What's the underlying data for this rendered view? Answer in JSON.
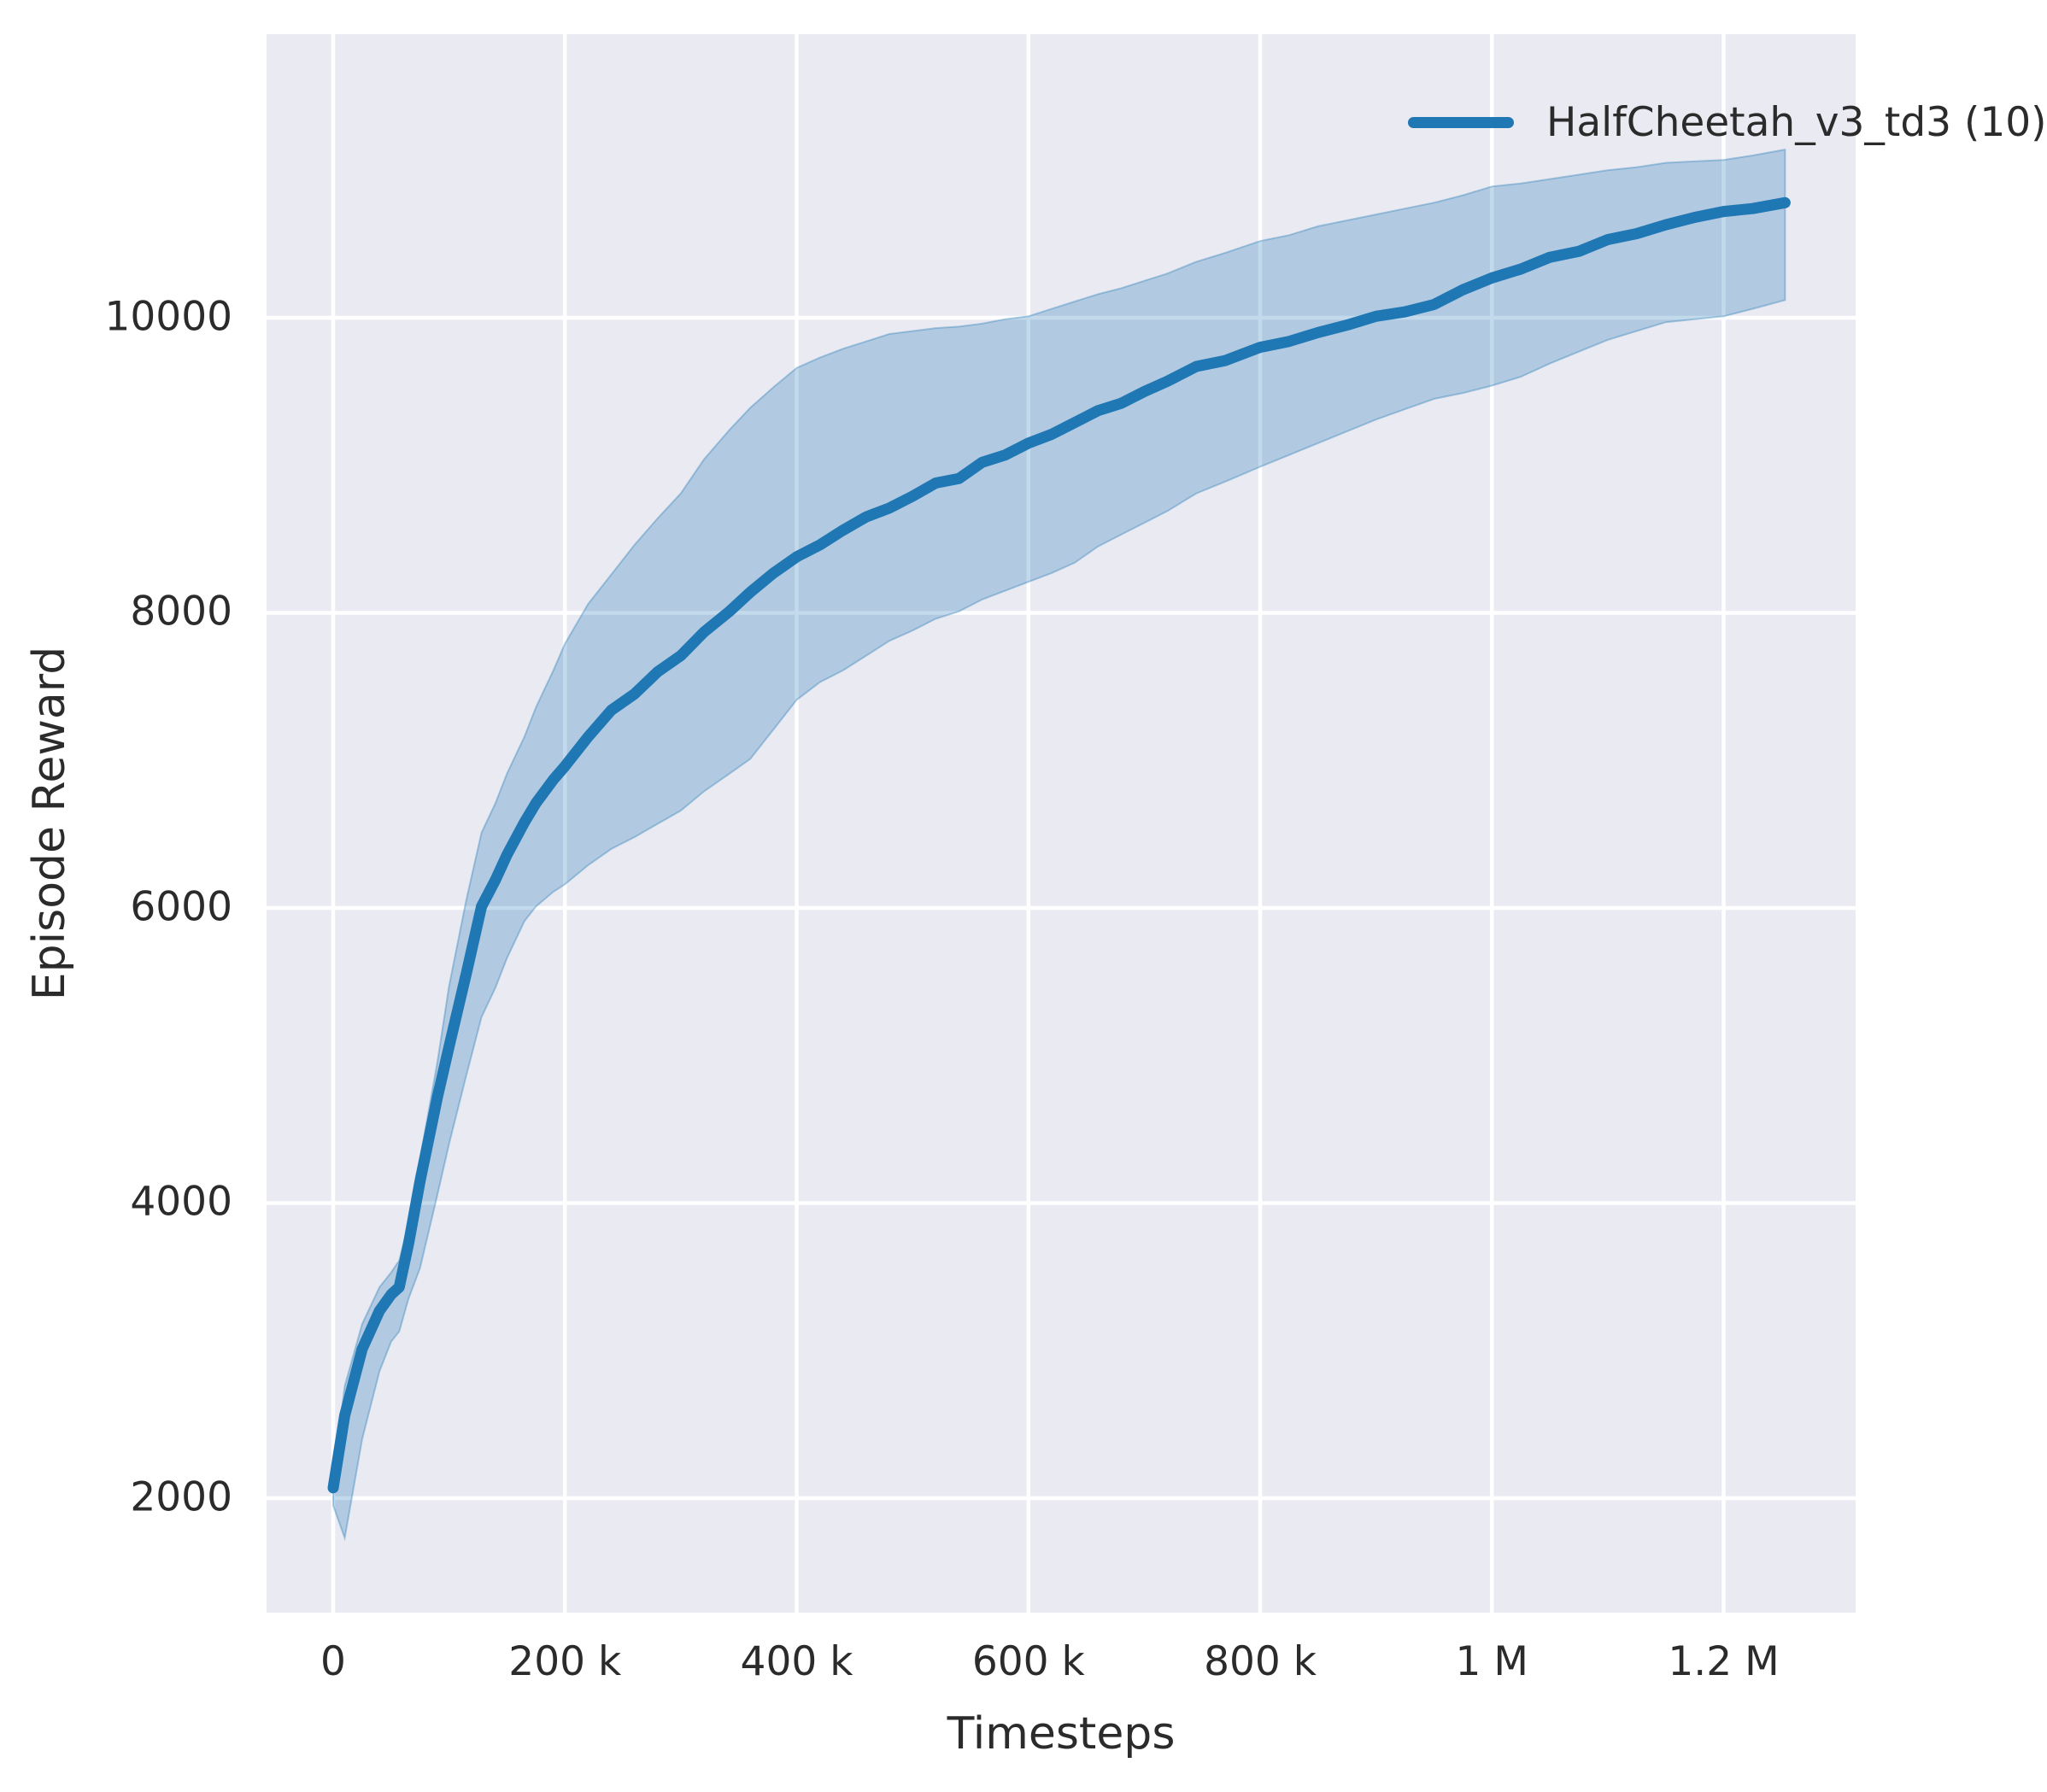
{
  "figure": {
    "x_axis_label": "Timesteps",
    "y_axis_label": "Episode Reward"
  },
  "legend": {
    "label": "HalfCheetah_v3_td3 (10)"
  },
  "colors": {
    "line": "#1f77b4",
    "band_opacity": 0.27,
    "band_edge_opacity": 0.35,
    "plot_background": "#eaeaf2",
    "grid": "#ffffff",
    "text": "#2b2b2b"
  },
  "chart_data": {
    "type": "line",
    "title": "",
    "xlabel": "Timesteps",
    "ylabel": "Episode Reward",
    "legend_entries": [
      "HalfCheetah_v3_td3 (10)"
    ],
    "legend_position": "upper right",
    "grid": true,
    "band": "shaded min-max/std region around mean line",
    "x_range": [
      -57500,
      1313900
    ],
    "y_range": [
      1224,
      11922
    ],
    "x_ticks": [
      {
        "value": 0,
        "label": "0"
      },
      {
        "value": 200000,
        "label": "200 k"
      },
      {
        "value": 400000,
        "label": "400 k"
      },
      {
        "value": 600000,
        "label": "600 k"
      },
      {
        "value": 800000,
        "label": "800 k"
      },
      {
        "value": 1000000,
        "label": "1 M"
      },
      {
        "value": 1200000,
        "label": "1.2 M"
      }
    ],
    "y_ticks": [
      {
        "value": 2000,
        "label": "2000"
      },
      {
        "value": 4000,
        "label": "4000"
      },
      {
        "value": 6000,
        "label": "6000"
      },
      {
        "value": 8000,
        "label": "8000"
      },
      {
        "value": 10000,
        "label": "10000"
      }
    ],
    "series": [
      {
        "name": "HalfCheetah_v3_td3 (10)",
        "x": [
          0,
          10000,
          25000,
          40000,
          50000,
          57000,
          65000,
          75000,
          90000,
          100000,
          115000,
          128000,
          140000,
          150000,
          165000,
          175000,
          190000,
          200000,
          220000,
          240000,
          260000,
          280000,
          300000,
          320000,
          342000,
          360000,
          380000,
          400000,
          420000,
          440000,
          460000,
          480000,
          500000,
          520000,
          540000,
          560000,
          580000,
          600000,
          620000,
          640000,
          660000,
          680000,
          700000,
          720000,
          745000,
          770000,
          800000,
          825000,
          850000,
          875000,
          900000,
          925000,
          950000,
          975000,
          1000000,
          1025000,
          1050000,
          1075000,
          1100000,
          1125000,
          1150000,
          1175000,
          1200000,
          1225000,
          1253000
        ],
        "mean": [
          2070,
          2560,
          3010,
          3270,
          3380,
          3430,
          3720,
          4150,
          4720,
          5060,
          5560,
          6010,
          6190,
          6360,
          6580,
          6710,
          6870,
          6960,
          7160,
          7340,
          7450,
          7600,
          7710,
          7870,
          8010,
          8140,
          8270,
          8380,
          8460,
          8560,
          8650,
          8710,
          8790,
          8880,
          8910,
          9020,
          9070,
          9150,
          9210,
          9290,
          9370,
          9420,
          9500,
          9570,
          9670,
          9710,
          9800,
          9840,
          9900,
          9950,
          10010,
          10040,
          10090,
          10190,
          10270,
          10330,
          10410,
          10450,
          10530,
          10570,
          10630,
          10680,
          10720,
          10740,
          10780
        ],
        "band_lower": [
          1950,
          1730,
          2400,
          2860,
          3060,
          3130,
          3350,
          3560,
          4060,
          4400,
          4870,
          5260,
          5460,
          5660,
          5910,
          6010,
          6110,
          6160,
          6290,
          6400,
          6480,
          6570,
          6660,
          6790,
          6910,
          7010,
          7210,
          7410,
          7530,
          7610,
          7710,
          7810,
          7880,
          7960,
          8010,
          8090,
          8150,
          8210,
          8270,
          8340,
          8450,
          8530,
          8610,
          8690,
          8810,
          8890,
          8990,
          9070,
          9150,
          9230,
          9310,
          9380,
          9450,
          9490,
          9540,
          9600,
          9690,
          9770,
          9850,
          9910,
          9970,
          9990,
          10010,
          10060,
          10120
        ],
        "band_upper": [
          2150,
          2760,
          3180,
          3430,
          3530,
          3610,
          3860,
          4300,
          4960,
          5470,
          6060,
          6510,
          6710,
          6910,
          7160,
          7360,
          7610,
          7790,
          8060,
          8260,
          8460,
          8640,
          8810,
          9040,
          9240,
          9390,
          9530,
          9660,
          9730,
          9790,
          9840,
          9890,
          9910,
          9930,
          9940,
          9960,
          9990,
          10010,
          10060,
          10110,
          10160,
          10200,
          10250,
          10300,
          10380,
          10440,
          10520,
          10560,
          10620,
          10660,
          10700,
          10740,
          10780,
          10830,
          10890,
          10910,
          10940,
          10970,
          11000,
          11020,
          11050,
          11060,
          11070,
          11100,
          11140
        ]
      }
    ]
  }
}
